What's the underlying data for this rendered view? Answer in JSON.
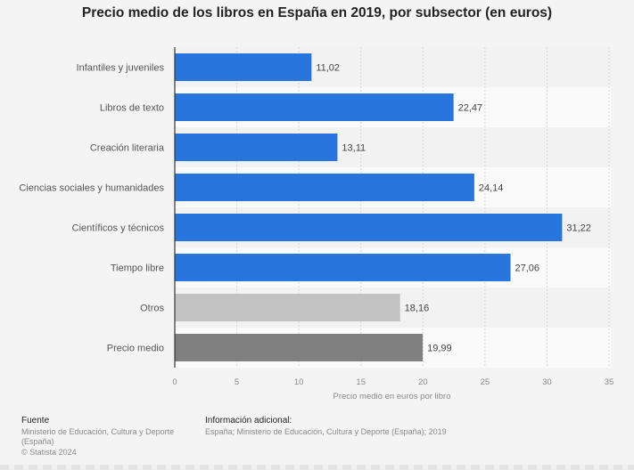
{
  "chart_data": {
    "type": "bar",
    "orientation": "horizontal",
    "title": "Precio medio de los libros en España en 2019, por subsector (en euros)",
    "xlabel": "Precio medio en euros por libro",
    "ylabel": "",
    "xlim": [
      0,
      35
    ],
    "xticks": [
      "0",
      "5",
      "10",
      "15",
      "20",
      "25",
      "30",
      "35"
    ],
    "grid": true,
    "categories": [
      "Infantiles y juveniles",
      "Libros de texto",
      "Creación literaria",
      "Ciencias sociales y humanidades",
      "Científicos y técnicos",
      "Tiempo libre",
      "Otros",
      "Precio medio"
    ],
    "values": [
      11.02,
      22.47,
      13.11,
      24.14,
      31.22,
      27.06,
      18.16,
      19.99
    ],
    "value_labels": [
      "11,02",
      "22,47",
      "13,11",
      "24,14",
      "31,22",
      "27,06",
      "18,16",
      "19,99"
    ],
    "bar_colors": [
      "#2876dd",
      "#2876dd",
      "#2876dd",
      "#2876dd",
      "#2876dd",
      "#2876dd",
      "#c2c2c2",
      "#808080"
    ]
  },
  "footer": {
    "source_heading": "Fuente",
    "source_lines": [
      "Ministerio de Educación, Cultura y Deporte",
      "(España)",
      "© Statista 2024"
    ],
    "info_heading": "Información adicional:",
    "info_text": "España; Ministerio de Educación, Cultura y Deporte (España); 2019"
  }
}
